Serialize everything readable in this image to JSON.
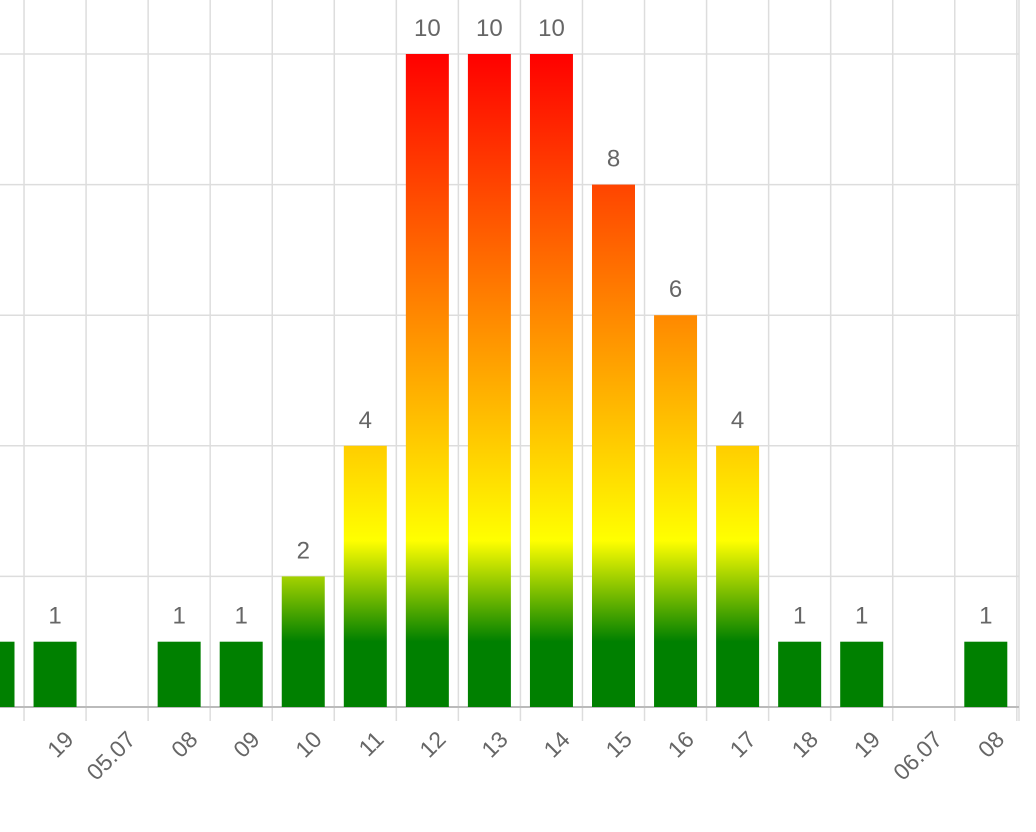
{
  "chart_data": {
    "type": "bar",
    "title": "",
    "xlabel": "",
    "ylabel": "",
    "ylim": [
      0,
      10
    ],
    "y_grid_values": [
      2,
      4,
      6,
      8,
      10
    ],
    "grid": true,
    "legend": "none",
    "categories": [
      "",
      "19",
      "05.07",
      "08",
      "09",
      "10",
      "11",
      "12",
      "13",
      "14",
      "15",
      "16",
      "17",
      "18",
      "19",
      "06.07",
      "08"
    ],
    "values": [
      1,
      1,
      0,
      1,
      1,
      2,
      4,
      10,
      10,
      10,
      8,
      6,
      4,
      1,
      1,
      0,
      1
    ],
    "data_labels": [
      "",
      "1",
      "",
      "1",
      "1",
      "2",
      "4",
      "10",
      "10",
      "10",
      "8",
      "6",
      "4",
      "1",
      "1",
      "",
      "1"
    ],
    "color_scale": {
      "low": "#008000",
      "mid": "#ffff00",
      "high": "#ff0000"
    },
    "grid_color": "#dddddd",
    "text_color": "#666666"
  }
}
